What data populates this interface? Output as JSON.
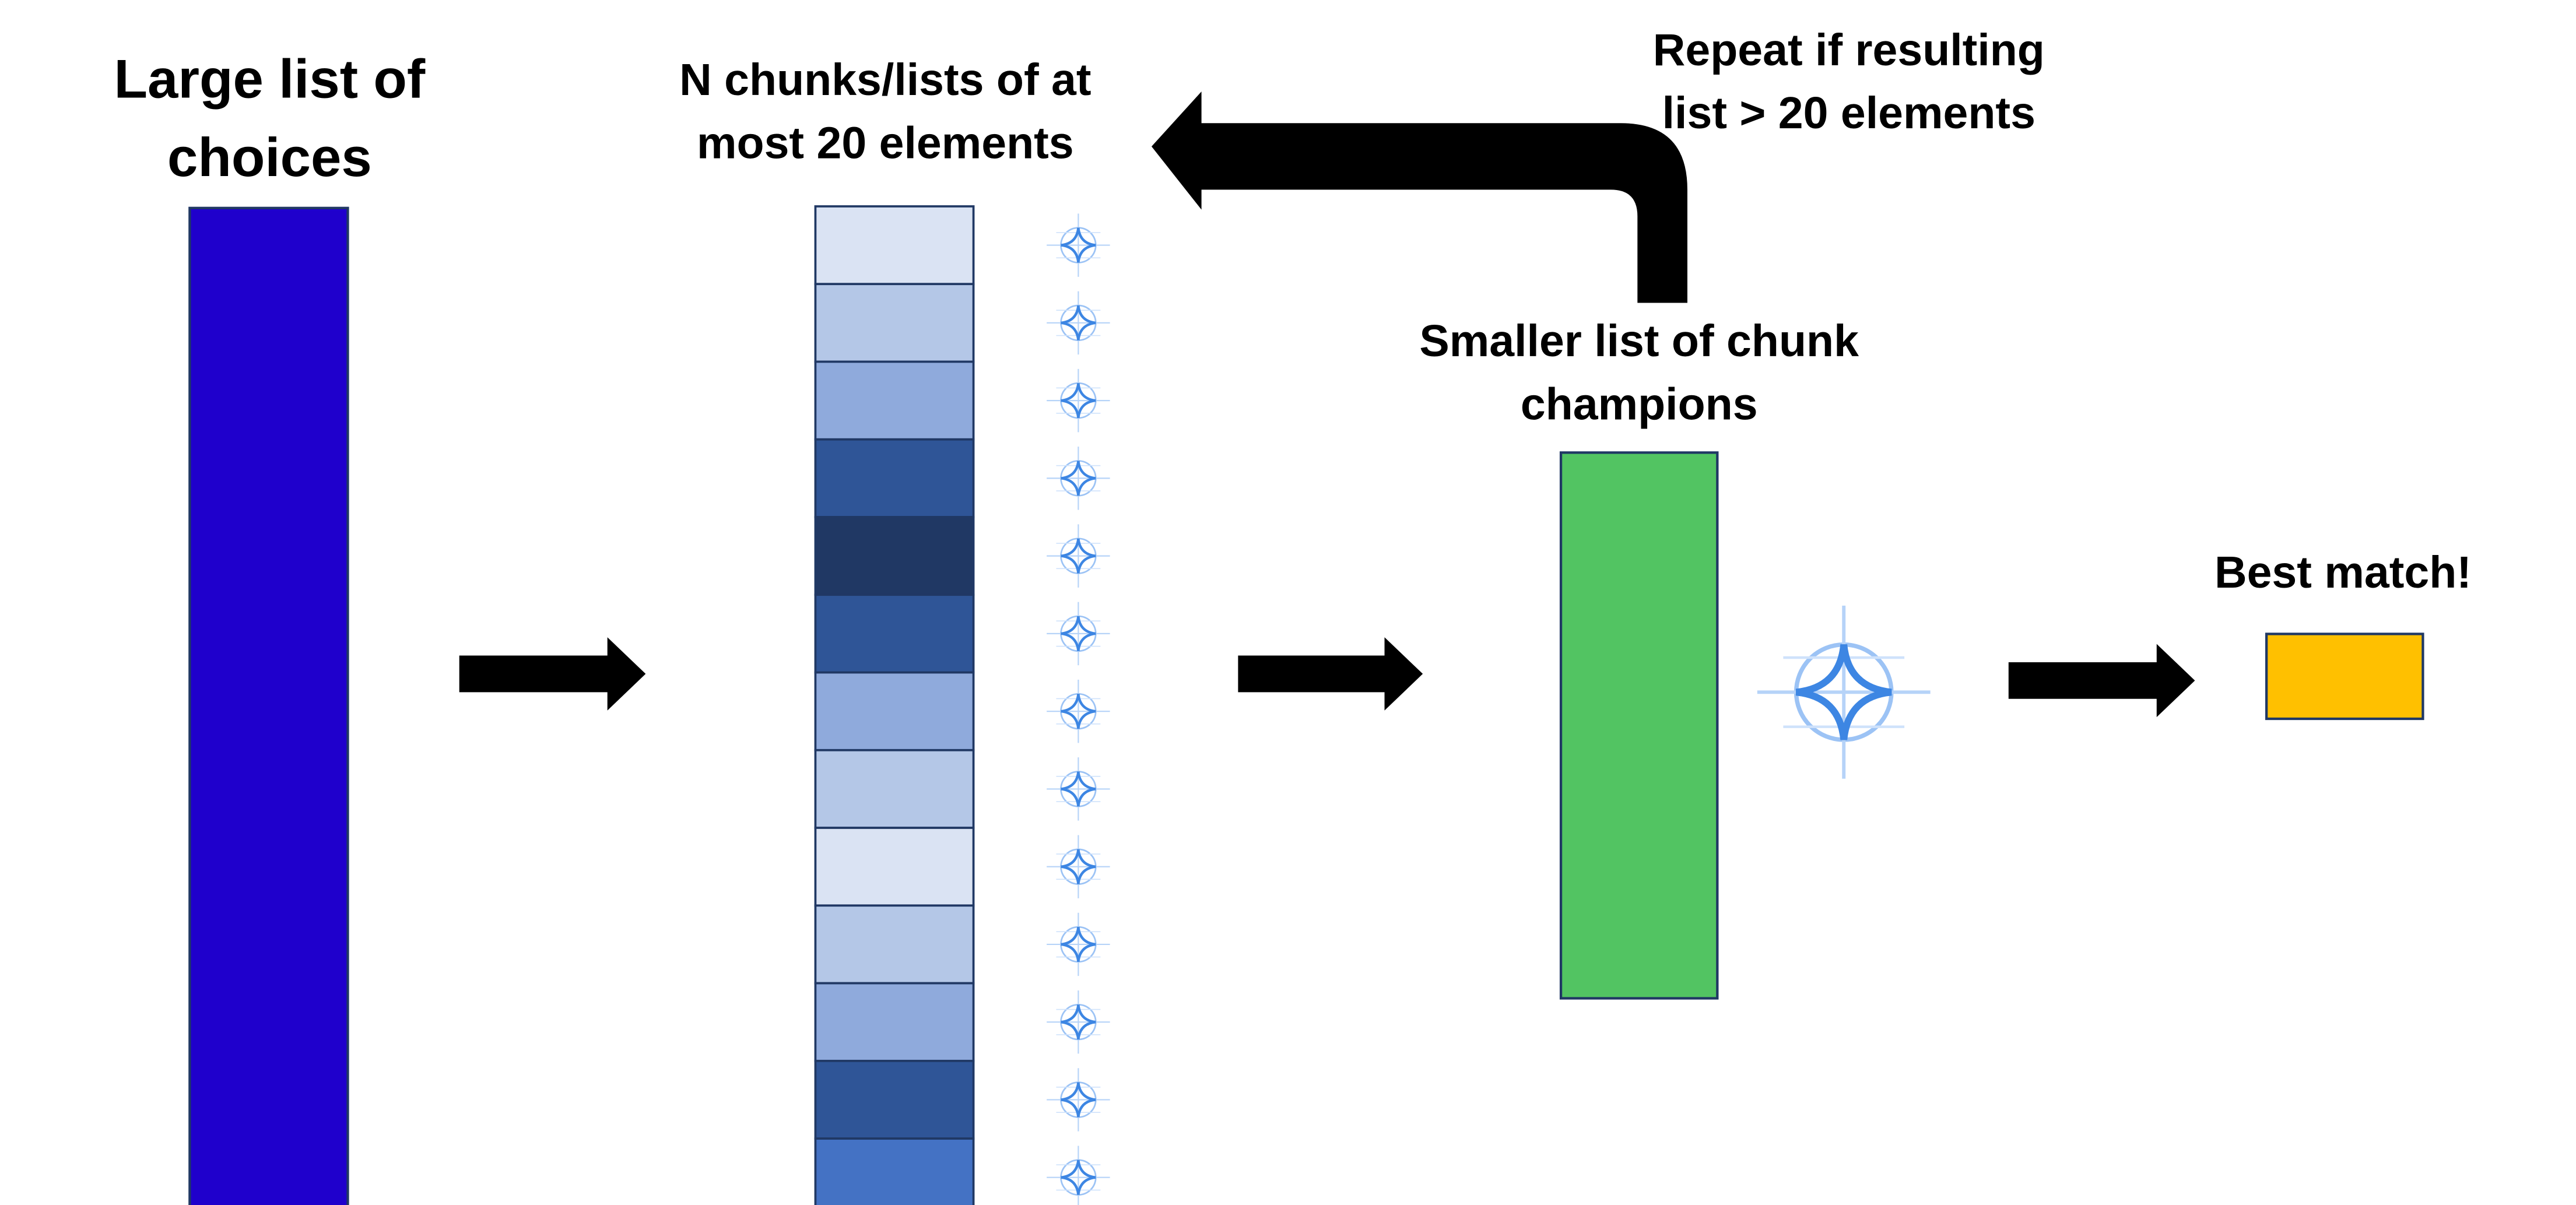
{
  "nodes": [
    {
      "label_lines": [
        "Large list of",
        "choices"
      ]
    },
    {
      "label_lines": [
        "N chunks/lists of at",
        "most 20 elements"
      ]
    },
    {
      "label_lines": [
        "Smaller list of chunk",
        "champions"
      ]
    },
    {
      "label_lines": [
        "Best match!"
      ]
    }
  ],
  "loop": {
    "label_lines": [
      "Repeat if resulting",
      "list > 20 elements"
    ]
  }
}
